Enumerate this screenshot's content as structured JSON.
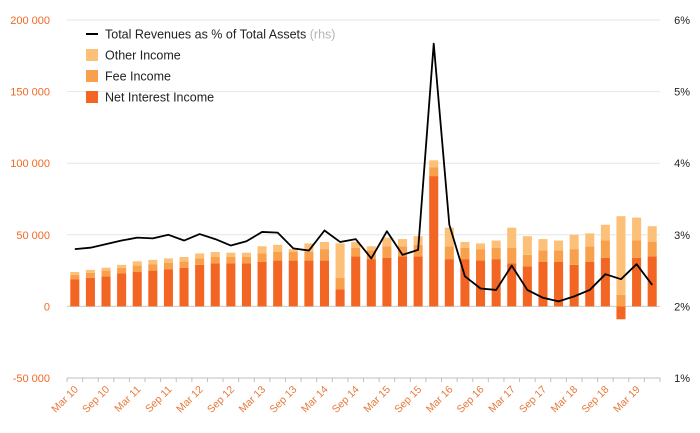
{
  "chart_data": {
    "type": "bar",
    "stacked": true,
    "title": "",
    "xlabel": "",
    "ylabel": "",
    "ylim": [
      -50000,
      200000
    ],
    "yticks": [
      -50000,
      0,
      50000,
      100000,
      150000,
      200000
    ],
    "ytick_labels": [
      "-50 000",
      "0",
      "50 000",
      "100 000",
      "150 000",
      "200 000"
    ],
    "y2lim": [
      1,
      6
    ],
    "y2ticks": [
      1,
      2,
      3,
      4,
      5,
      6
    ],
    "y2tick_labels": [
      "1%",
      "2%",
      "3%",
      "4%",
      "5%",
      "6%"
    ],
    "categories": [
      "Mar 10",
      "Jun 10",
      "Sep 10",
      "Dec 10",
      "Mar 11",
      "Jun 11",
      "Sep 11",
      "Dec 11",
      "Mar 12",
      "Jun 12",
      "Sep 12",
      "Dec 12",
      "Mar 13",
      "Jun 13",
      "Sep 13",
      "Dec 13",
      "Mar 14",
      "Jun 14",
      "Sep 14",
      "Dec 14",
      "Mar 15",
      "Jun 15",
      "Sep 15",
      "Dec 15",
      "Mar 16",
      "Jun 16",
      "Sep 16",
      "Dec 16",
      "Mar 17",
      "Jun 17",
      "Sep 17",
      "Dec 17",
      "Mar 18",
      "Jun 18",
      "Sep 18",
      "Dec 18",
      "Mar 19",
      "Jun 19"
    ],
    "xtick_labels": [
      "Mar 10",
      "Sep 10",
      "Mar 11",
      "Sep 11",
      "Mar 12",
      "Sep 12",
      "Mar 13",
      "Sep 13",
      "Mar 14",
      "Sep 14",
      "Mar 15",
      "Sep 15",
      "Mar 16",
      "Sep 16",
      "Mar 17",
      "Sep 17",
      "Mar 18",
      "Sep 18",
      "Mar 19"
    ],
    "series": [
      {
        "name": "Net Interest Income",
        "kind": "bar",
        "color": "#f26522",
        "values": [
          19000,
          20000,
          21000,
          23000,
          24000,
          25000,
          26000,
          27000,
          29000,
          30000,
          30000,
          30000,
          31000,
          32000,
          32000,
          32000,
          32000,
          12000,
          35000,
          33000,
          34000,
          35000,
          35000,
          91000,
          33000,
          33000,
          32000,
          33000,
          30000,
          28000,
          31000,
          31000,
          29000,
          31000,
          34000,
          -9000,
          34000,
          35000
        ]
      },
      {
        "name": "Fee Income",
        "kind": "bar",
        "color": "#f9a04d",
        "values": [
          3000,
          3500,
          4000,
          4000,
          4500,
          4500,
          4500,
          4500,
          4500,
          4500,
          4500,
          4500,
          6000,
          6000,
          6000,
          6000,
          8000,
          8000,
          6000,
          6000,
          8000,
          7000,
          8000,
          6000,
          9000,
          8000,
          8000,
          8000,
          11000,
          8000,
          8000,
          8000,
          11000,
          11000,
          12000,
          8000,
          12000,
          10000
        ]
      },
      {
        "name": "Other Income",
        "kind": "bar",
        "color": "#fcc078",
        "values": [
          2000,
          2000,
          2000,
          2000,
          3000,
          3000,
          3000,
          3000,
          3500,
          3500,
          3000,
          3000,
          5000,
          5000,
          2000,
          6000,
          5000,
          24000,
          4000,
          3000,
          6000,
          5000,
          6000,
          5000,
          13000,
          4000,
          4000,
          5000,
          14000,
          13000,
          8000,
          7000,
          10000,
          9000,
          11000,
          55000,
          16000,
          11000
        ]
      },
      {
        "name": "Total Revenues as % of Total Assets",
        "legend_note": "(rhs)",
        "kind": "line",
        "axis": "right",
        "color": "#000000",
        "values": [
          2.8,
          2.82,
          2.87,
          2.92,
          2.96,
          2.95,
          3.0,
          2.92,
          3.01,
          2.94,
          2.85,
          2.91,
          3.04,
          3.03,
          2.81,
          2.78,
          3.06,
          2.9,
          2.94,
          2.67,
          3.05,
          2.72,
          2.79,
          5.67,
          3.14,
          2.42,
          2.25,
          2.23,
          2.57,
          2.23,
          2.12,
          2.07,
          2.14,
          2.23,
          2.45,
          2.38,
          2.59,
          2.3
        ]
      }
    ],
    "legend": {
      "placement": "top-left",
      "order": [
        "Total Revenues as % of Total Assets",
        "Other Income",
        "Fee Income",
        "Net Interest Income"
      ]
    }
  }
}
